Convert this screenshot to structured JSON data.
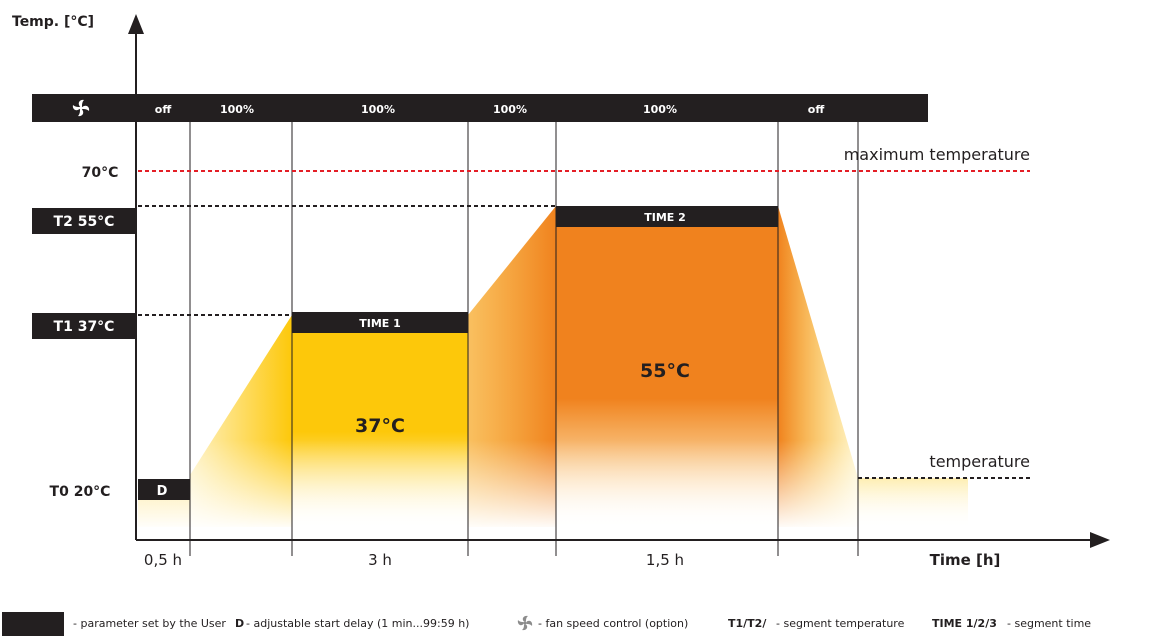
{
  "colors": {
    "black": "#231f20",
    "yellow": "#fdc80a",
    "orange": "#f0821e",
    "red": "#e41e26",
    "white": "#ffffff"
  },
  "axes": {
    "ylabel": "Temp. [°C]",
    "xlabel": "Time [h]"
  },
  "fan_bar": {
    "icon": "fan-icon",
    "segments": [
      "off",
      "100%",
      "100%",
      "100%",
      "100%",
      "off"
    ]
  },
  "temp_labels": {
    "max": "70°C",
    "t2": "T2 55°C",
    "t1": "T1 37°C",
    "t0": "T0 20°C"
  },
  "annotations": {
    "max_line": "maximum temperature",
    "temp_line": "temperature"
  },
  "blocks": {
    "delay": "D",
    "time1": "TIME 1",
    "time2": "TIME 2",
    "seg1_temp": "37°C",
    "seg2_temp": "55°C"
  },
  "durations": {
    "delay": "0,5 h",
    "seg1": "3 h",
    "seg2": "1,5 h"
  },
  "legend": {
    "user_param": "- parameter set by the User",
    "delay_key": "D",
    "delay_desc": "- adjustable start delay (1 min...99:59 h)",
    "fan_desc": "- fan speed control (option)",
    "temp_key": "T1/T2/",
    "temp_desc": "- segment temperature",
    "time_key": "TIME 1/2/3",
    "time_desc": "- segment time"
  }
}
